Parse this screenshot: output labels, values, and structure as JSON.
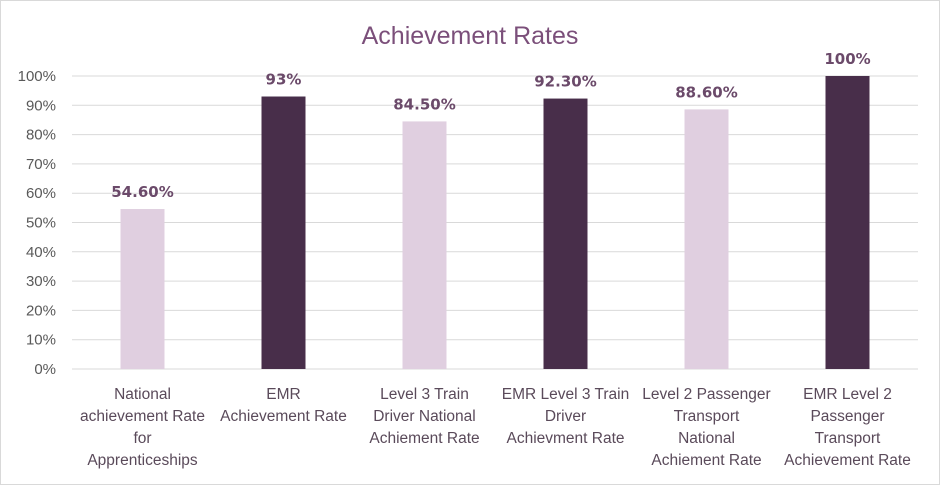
{
  "chart_data": {
    "type": "bar",
    "title": "Achievement Rates",
    "xlabel": "",
    "ylabel": "",
    "ylim": [
      0,
      100
    ],
    "yticks": [
      "0%",
      "10%",
      "20%",
      "30%",
      "40%",
      "50%",
      "60%",
      "70%",
      "80%",
      "90%",
      "100%"
    ],
    "grid": true,
    "legend": "none",
    "categories": [
      [
        "National",
        "achievement Rate",
        "for",
        "Apprenticeships"
      ],
      [
        "EMR",
        "Achievement Rate"
      ],
      [
        "Level 3 Train",
        "Driver National",
        "Achiement Rate"
      ],
      [
        "EMR Level 3 Train",
        "Driver",
        "Achievment Rate"
      ],
      [
        "Level 2 Passenger",
        "Transport",
        "National",
        "Achiement Rate"
      ],
      [
        "EMR Level 2",
        "Passenger",
        "Transport",
        "Achievement Rate"
      ]
    ],
    "values": [
      54.6,
      93,
      84.5,
      92.3,
      88.6,
      100
    ],
    "data_labels": [
      "54.60%",
      "93%",
      "84.50%",
      "92.30%",
      "88.60%",
      "100%"
    ],
    "colors": [
      "#e0cfe0",
      "#482e4a",
      "#e0cfe0",
      "#482e4a",
      "#e0cfe0",
      "#482e4a"
    ]
  }
}
